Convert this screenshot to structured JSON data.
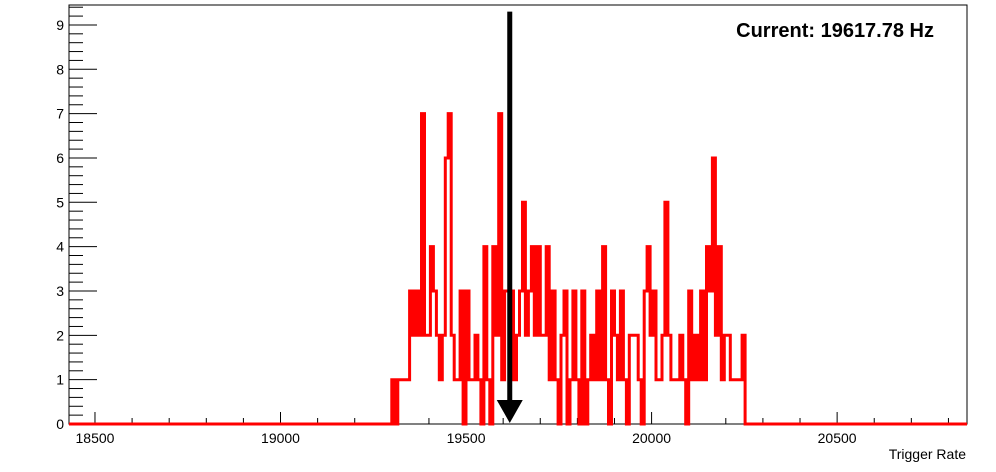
{
  "chart_data": {
    "type": "histogram",
    "title": "",
    "xlabel": "Trigger Rate",
    "ylabel": "",
    "xlim": [
      18430,
      20850
    ],
    "ylim": [
      0,
      9.45
    ],
    "grid": false,
    "legend": "none",
    "x_ticks": [
      18500,
      19000,
      19500,
      20000,
      20500
    ],
    "y_ticks": [
      0,
      1,
      2,
      3,
      4,
      5,
      6,
      7,
      8,
      9
    ],
    "bin_width": 8,
    "bins_start": 19300,
    "series": [
      {
        "color": "#ff0000",
        "values": [
          1,
          0,
          1,
          1,
          1,
          1,
          3,
          2,
          3,
          2,
          7,
          2,
          2,
          4,
          3,
          2,
          1,
          2,
          6,
          7,
          2,
          1,
          1,
          3,
          0,
          3,
          1,
          1,
          2,
          1,
          0,
          4,
          1,
          0,
          4,
          2,
          7,
          1,
          3,
          3,
          3,
          1,
          2,
          3,
          5,
          2,
          3,
          4,
          2,
          4,
          2,
          2,
          4,
          1,
          3,
          1,
          0,
          2,
          3,
          0,
          1,
          3,
          1,
          0,
          3,
          0,
          1,
          2,
          1,
          3,
          1,
          4,
          1,
          0,
          3,
          2,
          1,
          3,
          1,
          0,
          2,
          2,
          2,
          1,
          0,
          3,
          4,
          2,
          3,
          1,
          1,
          2,
          5,
          2,
          1,
          1,
          1,
          2,
          1,
          0,
          3,
          1,
          2,
          1,
          3,
          1,
          4,
          3,
          6,
          2,
          4,
          1,
          2,
          2,
          1,
          1,
          1,
          1,
          2
        ]
      }
    ],
    "annotations": [
      {
        "type": "arrow",
        "x": 19617.78,
        "y_from": 9.3,
        "y_to": 0,
        "color": "#000000"
      }
    ]
  },
  "current_label": "Current: 19617.78 Hz"
}
